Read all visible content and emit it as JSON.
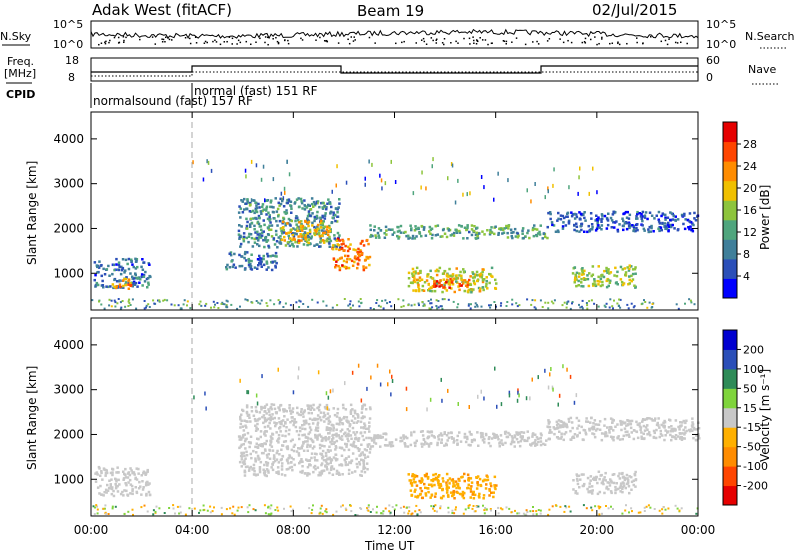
{
  "header": {
    "title": "Adak West (fitACF)",
    "beam": "Beam 19",
    "date": "02/Jul/2015"
  },
  "top_panels": {
    "nsky_label": "N.Sky",
    "nsky_ticks": [
      "10^5",
      "10^0"
    ],
    "nsearch_label": "N.Search",
    "nsearch_ticks": [
      "10^5",
      "10^0"
    ],
    "freq_label": "Freq.",
    "freq_unit": "[MHz]",
    "freq_ticks": [
      "18",
      "8"
    ],
    "nave_label": "Nave",
    "nave_ticks": [
      "60",
      "0"
    ],
    "cpid_label": "CPID",
    "cpid_entries": [
      "normalsound (fast) 157 RF",
      "normal (fast) 151 RF"
    ]
  },
  "chart_data": [
    {
      "type": "heatmap",
      "panel": "power",
      "ylabel": "Slant Range [km]",
      "yticks": [
        "1000",
        "2000",
        "3000",
        "4000"
      ],
      "ylim": [
        180,
        4600
      ],
      "colorbar": {
        "label": "Power [dB]",
        "ticks": [
          "4",
          "8",
          "12",
          "16",
          "20",
          "24",
          "28"
        ],
        "range": [
          0,
          32
        ],
        "colors": [
          "#0000ff",
          "#2b4fb8",
          "#3f7f9a",
          "#4fa57d",
          "#8dc43c",
          "#f0c000",
          "#ff8c00",
          "#ff4500",
          "#e60000"
        ]
      },
      "regions": [
        {
          "t_start": 0.1,
          "t_end": 2.3,
          "range": [
            700,
            1350
          ],
          "power": 8
        },
        {
          "t_start": 0.8,
          "t_end": 1.6,
          "range": [
            680,
            900
          ],
          "power": 22
        },
        {
          "t_start": 5.8,
          "t_end": 9.8,
          "range": [
            1600,
            2700
          ],
          "power": 10
        },
        {
          "t_start": 7.5,
          "t_end": 9.5,
          "range": [
            1700,
            2200
          ],
          "power": 20
        },
        {
          "t_start": 9.5,
          "t_end": 11.0,
          "range": [
            1100,
            1800
          ],
          "power": 24
        },
        {
          "t_start": 11.0,
          "t_end": 18.0,
          "range": [
            1800,
            2100
          ],
          "power": 12
        },
        {
          "t_start": 12.5,
          "t_end": 16.0,
          "range": [
            600,
            1150
          ],
          "power": 18
        },
        {
          "t_start": 13.5,
          "t_end": 15.0,
          "range": [
            700,
            900
          ],
          "power": 26
        },
        {
          "t_start": 18.0,
          "t_end": 24.0,
          "range": [
            1950,
            2400
          ],
          "power": 6
        },
        {
          "t_start": 19.0,
          "t_end": 21.5,
          "range": [
            700,
            1200
          ],
          "power": 16
        },
        {
          "t_start": 5.3,
          "t_end": 7.3,
          "range": [
            1100,
            1500
          ],
          "power": 8
        }
      ]
    },
    {
      "type": "heatmap",
      "panel": "velocity",
      "ylabel": "Slant Range [km]",
      "yticks": [
        "1000",
        "2000",
        "3000",
        "4000"
      ],
      "ylim": [
        180,
        4600
      ],
      "xlabel": "Time UT",
      "xticks": [
        "00:00",
        "04:00",
        "08:00",
        "12:00",
        "16:00",
        "20:00",
        "00:00"
      ],
      "xlim": [
        0,
        24
      ],
      "colorbar": {
        "label": "Velocity [m s⁻¹]",
        "ticks": [
          "-200",
          "-100",
          "-50",
          "-15",
          "15",
          "50",
          "100",
          "200"
        ],
        "colors": [
          "#e60000",
          "#ff4500",
          "#ff8c00",
          "#ffb000",
          "#c8c8c8",
          "#7fd43c",
          "#2e8b57",
          "#2b4fb8",
          "#0000d0"
        ]
      },
      "regions": [
        {
          "t_start": 0.1,
          "t_end": 2.3,
          "range": [
            650,
            1300
          ],
          "velocity": 0
        },
        {
          "t_start": 5.8,
          "t_end": 11.0,
          "range": [
            1100,
            2700
          ],
          "velocity": 0
        },
        {
          "t_start": 11.0,
          "t_end": 18.0,
          "range": [
            1750,
            2100
          ],
          "velocity": 0
        },
        {
          "t_start": 12.5,
          "t_end": 16.0,
          "range": [
            600,
            1150
          ],
          "velocity": -40
        },
        {
          "t_start": 18.0,
          "t_end": 24.0,
          "range": [
            1900,
            2400
          ],
          "velocity": 0
        },
        {
          "t_start": 19.0,
          "t_end": 21.5,
          "range": [
            700,
            1200
          ],
          "velocity": 0
        }
      ]
    }
  ]
}
